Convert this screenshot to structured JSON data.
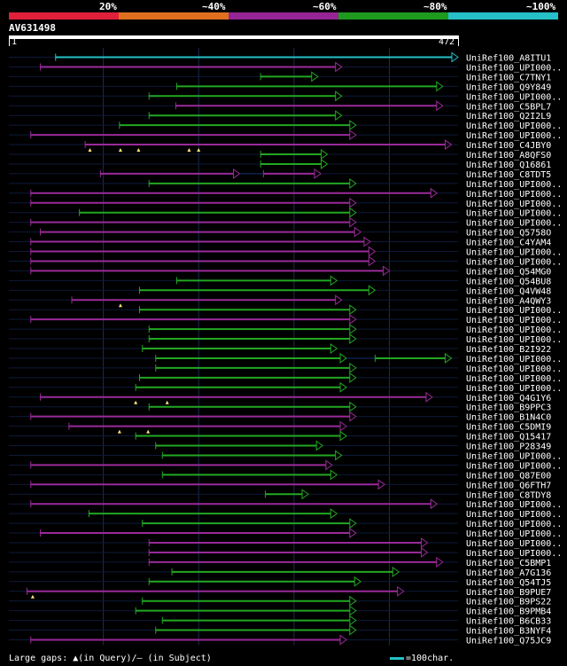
{
  "legend": {
    "labels": [
      "20%",
      "~40%",
      "~60%",
      "~80%",
      "~100%"
    ],
    "bands": [
      {
        "color": "#e0203a"
      },
      {
        "color": "#e07020"
      },
      {
        "color": "#952495"
      },
      {
        "color": "#1e9a1e"
      },
      {
        "color": "#25c0c8"
      }
    ]
  },
  "query": {
    "id": "AV631498",
    "start_label": "1",
    "end_label": "472",
    "length": 472
  },
  "footer": {
    "gaps_text": "Large gaps: ▲(in Query)/— (in Subject)",
    "scale_text": "=100char."
  },
  "colors": {
    "green": "#22a722",
    "purple": "#9a2a9a",
    "cyan": "#25c0c8",
    "grid": "#1b2a4a"
  },
  "chart_data": {
    "type": "alignment",
    "title": "AV631498",
    "x_range": [
      1,
      472
    ],
    "hits": [
      {
        "name": "UniRef100_A8ITU1",
        "color": "cyan",
        "segs": [
          [
            50,
            472
          ]
        ]
      },
      {
        "name": "UniRef100_UPI000..",
        "color": "purple",
        "segs": [
          [
            34,
            350
          ]
        ]
      },
      {
        "name": "UniRef100_C7TNY1",
        "color": "green",
        "segs": [
          [
            265,
            325
          ]
        ]
      },
      {
        "name": "UniRef100_Q9Y849",
        "color": "green",
        "segs": [
          [
            177,
            456
          ]
        ]
      },
      {
        "name": "UniRef100_UPI000..",
        "color": "green",
        "segs": [
          [
            148,
            350
          ]
        ]
      },
      {
        "name": "UniRef100_C5BPL7",
        "color": "purple",
        "segs": [
          [
            176,
            456
          ]
        ]
      },
      {
        "name": "UniRef100_Q2I2L9",
        "color": "green",
        "segs": [
          [
            148,
            350
          ]
        ]
      },
      {
        "name": "UniRef100_UPI000..",
        "color": "green",
        "segs": [
          [
            117,
            365
          ]
        ]
      },
      {
        "name": "UniRef100_UPI000..",
        "color": "purple",
        "segs": [
          [
            24,
            365
          ]
        ]
      },
      {
        "name": "UniRef100_C4JBY0",
        "color": "purple",
        "segs": [
          [
            81,
            465
          ]
        ],
        "gaps": [
          86,
          118,
          137,
          190,
          200
        ]
      },
      {
        "name": "UniRef100_A8QFS0",
        "color": "green",
        "segs": [
          [
            265,
            335
          ]
        ]
      },
      {
        "name": "UniRef100_Q16861",
        "color": "green",
        "segs": [
          [
            265,
            335
          ]
        ]
      },
      {
        "name": "UniRef100_C8TDT5",
        "color": "purple",
        "segs": [
          [
            97,
            243
          ],
          [
            268,
            328
          ]
        ]
      },
      {
        "name": "UniRef100_UPI000..",
        "color": "green",
        "segs": [
          [
            148,
            365
          ]
        ]
      },
      {
        "name": "UniRef100_UPI000..",
        "color": "purple",
        "segs": [
          [
            24,
            450
          ]
        ]
      },
      {
        "name": "UniRef100_UPI000..",
        "color": "purple",
        "segs": [
          [
            24,
            365
          ]
        ]
      },
      {
        "name": "UniRef100_UPI000..",
        "color": "green",
        "segs": [
          [
            75,
            365
          ]
        ]
      },
      {
        "name": "UniRef100_UPI000..",
        "color": "purple",
        "segs": [
          [
            24,
            365
          ]
        ]
      },
      {
        "name": "UniRef100_Q5758O",
        "color": "purple",
        "segs": [
          [
            34,
            370
          ]
        ]
      },
      {
        "name": "UniRef100_C4YAM4",
        "color": "purple",
        "segs": [
          [
            24,
            380
          ]
        ]
      },
      {
        "name": "UniRef100_UPI000..",
        "color": "purple",
        "segs": [
          [
            24,
            385
          ]
        ]
      },
      {
        "name": "UniRef100_UPI000..",
        "color": "purple",
        "segs": [
          [
            24,
            385
          ]
        ]
      },
      {
        "name": "UniRef100_Q54MG0",
        "color": "purple",
        "segs": [
          [
            24,
            400
          ]
        ]
      },
      {
        "name": "UniRef100_Q54BU8",
        "color": "green",
        "segs": [
          [
            177,
            345
          ]
        ]
      },
      {
        "name": "UniRef100_Q4VW48",
        "color": "green",
        "segs": [
          [
            138,
            385
          ]
        ]
      },
      {
        "name": "UniRef100_A4QWY3",
        "color": "purple",
        "segs": [
          [
            67,
            350
          ]
        ],
        "gaps": [
          118
        ]
      },
      {
        "name": "UniRef100_UPI000..",
        "color": "green",
        "segs": [
          [
            138,
            365
          ]
        ]
      },
      {
        "name": "UniRef100_UPI000..",
        "color": "purple",
        "segs": [
          [
            24,
            365
          ]
        ]
      },
      {
        "name": "UniRef100_UPI000..",
        "color": "green",
        "segs": [
          [
            148,
            365
          ]
        ]
      },
      {
        "name": "UniRef100_UPI000..",
        "color": "green",
        "segs": [
          [
            148,
            365
          ]
        ]
      },
      {
        "name": "UniRef100_B2I922",
        "color": "green",
        "segs": [
          [
            141,
            345
          ]
        ]
      },
      {
        "name": "UniRef100_UPI000..",
        "color": "green",
        "segs": [
          [
            155,
            355
          ],
          [
            385,
            465
          ]
        ]
      },
      {
        "name": "UniRef100_UPI000..",
        "color": "green",
        "segs": [
          [
            155,
            365
          ]
        ]
      },
      {
        "name": "UniRef100_UPI000..",
        "color": "green",
        "segs": [
          [
            138,
            365
          ]
        ]
      },
      {
        "name": "UniRef100_UPI000..",
        "color": "green",
        "segs": [
          [
            134,
            355
          ]
        ]
      },
      {
        "name": "UniRef100_Q4G1Y6",
        "color": "purple",
        "segs": [
          [
            34,
            445
          ]
        ],
        "gaps": [
          134,
          167
        ]
      },
      {
        "name": "UniRef100_B9PPC3",
        "color": "green",
        "segs": [
          [
            148,
            365
          ]
        ]
      },
      {
        "name": "UniRef100_B1N4C0",
        "color": "purple",
        "segs": [
          [
            24,
            365
          ]
        ]
      },
      {
        "name": "UniRef100_C5DMI9",
        "color": "purple",
        "segs": [
          [
            64,
            355
          ]
        ],
        "gaps": [
          117,
          147
        ]
      },
      {
        "name": "UniRef100_Q15417",
        "color": "green",
        "segs": [
          [
            134,
            355
          ]
        ]
      },
      {
        "name": "UniRef100_P28349",
        "color": "green",
        "segs": [
          [
            155,
            330
          ]
        ]
      },
      {
        "name": "UniRef100_UPI000..",
        "color": "green",
        "segs": [
          [
            162,
            350
          ]
        ]
      },
      {
        "name": "UniRef100_UPI000..",
        "color": "purple",
        "segs": [
          [
            24,
            340
          ]
        ]
      },
      {
        "name": "UniRef100_Q87E00",
        "color": "green",
        "segs": [
          [
            162,
            345
          ]
        ]
      },
      {
        "name": "UniRef100_Q6FTH7",
        "color": "purple",
        "segs": [
          [
            24,
            395
          ]
        ]
      },
      {
        "name": "UniRef100_C8TDY8",
        "color": "green",
        "segs": [
          [
            270,
            315
          ]
        ]
      },
      {
        "name": "UniRef100_UPI000..",
        "color": "purple",
        "segs": [
          [
            24,
            450
          ]
        ]
      },
      {
        "name": "UniRef100_UPI000..",
        "color": "green",
        "segs": [
          [
            85,
            345
          ]
        ]
      },
      {
        "name": "UniRef100_UPI000..",
        "color": "green",
        "segs": [
          [
            141,
            365
          ]
        ]
      },
      {
        "name": "UniRef100_UPI000..",
        "color": "purple",
        "segs": [
          [
            34,
            365
          ]
        ]
      },
      {
        "name": "UniRef100_UPI000..",
        "color": "purple",
        "segs": [
          [
            148,
            440
          ]
        ]
      },
      {
        "name": "UniRef100_UPI000..",
        "color": "purple",
        "segs": [
          [
            148,
            440
          ]
        ]
      },
      {
        "name": "UniRef100_C5BMP1",
        "color": "purple",
        "segs": [
          [
            148,
            456
          ]
        ]
      },
      {
        "name": "UniRef100_A7G136",
        "color": "green",
        "segs": [
          [
            172,
            410
          ]
        ]
      },
      {
        "name": "UniRef100_Q54TJ5",
        "color": "green",
        "segs": [
          [
            148,
            370
          ]
        ]
      },
      {
        "name": "UniRef100_B9PUE7",
        "color": "purple",
        "segs": [
          [
            20,
            415
          ]
        ],
        "gaps": [
          26
        ]
      },
      {
        "name": "UniRef100_B9PS22",
        "color": "green",
        "segs": [
          [
            141,
            365
          ]
        ]
      },
      {
        "name": "UniRef100_B9PMB4",
        "color": "green",
        "segs": [
          [
            134,
            365
          ]
        ]
      },
      {
        "name": "UniRef100_B6CB33",
        "color": "green",
        "segs": [
          [
            162,
            365
          ]
        ]
      },
      {
        "name": "UniRef100_B3NYF4",
        "color": "green",
        "segs": [
          [
            155,
            365
          ]
        ]
      },
      {
        "name": "UniRef100_Q75JC9",
        "color": "purple",
        "segs": [
          [
            24,
            355
          ]
        ]
      }
    ]
  }
}
